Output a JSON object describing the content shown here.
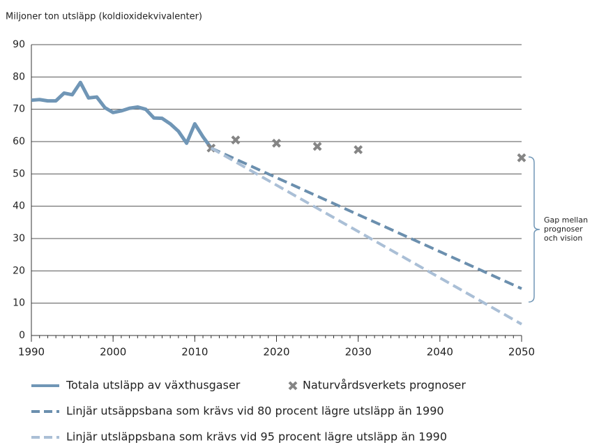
{
  "chart_data": {
    "type": "line",
    "title": "Miljoner ton utsläpp (koldioxidekvivalenter)",
    "xlim": [
      1990,
      2050
    ],
    "xticks": [
      1990,
      2000,
      2010,
      2020,
      2030,
      2040,
      2050
    ],
    "ylim": [
      0,
      90
    ],
    "yticks": [
      0,
      10,
      20,
      30,
      40,
      50,
      60,
      70,
      80,
      90
    ],
    "grid": true,
    "series": [
      {
        "name": "Totala utsläpp av växthusgaser",
        "color": "#7096b6",
        "style": "solid",
        "x": [
          1990,
          1991,
          1992,
          1993,
          1994,
          1995,
          1996,
          1997,
          1998,
          1999,
          2000,
          2001,
          2002,
          2003,
          2004,
          2005,
          2006,
          2007,
          2008,
          2009,
          2010,
          2011,
          2012
        ],
        "values": [
          72.8,
          73,
          72.6,
          72.6,
          75,
          74.5,
          78.3,
          73.5,
          73.8,
          70.5,
          69,
          69.5,
          70.3,
          70.7,
          70,
          67.3,
          67.2,
          65.5,
          63.2,
          59.5,
          65.5,
          61.5,
          58
        ]
      },
      {
        "name": "Naturvårdsverkets prognoser",
        "color": "#858585",
        "style": "marker",
        "x": [
          2012,
          2015,
          2020,
          2025,
          2030,
          2050
        ],
        "values": [
          58,
          60.5,
          59.5,
          58.5,
          57.5,
          55
        ]
      },
      {
        "name": "Linjär utsäppsbana som krävs vid 80 procent lägre utsläpp än 1990",
        "color": "#6b8fae",
        "style": "dashed",
        "x": [
          2012,
          2050
        ],
        "values": [
          58,
          14.5
        ]
      },
      {
        "name": "Linjär utsläppsbana som krävs vid 95 procent lägre utsläpp än 1990",
        "color": "#aabfd6",
        "style": "dashed",
        "x": [
          2012,
          2050
        ],
        "values": [
          58,
          3.5
        ]
      }
    ],
    "annotation": [
      "Gap mellan",
      "prognoser",
      "och vision"
    ]
  }
}
